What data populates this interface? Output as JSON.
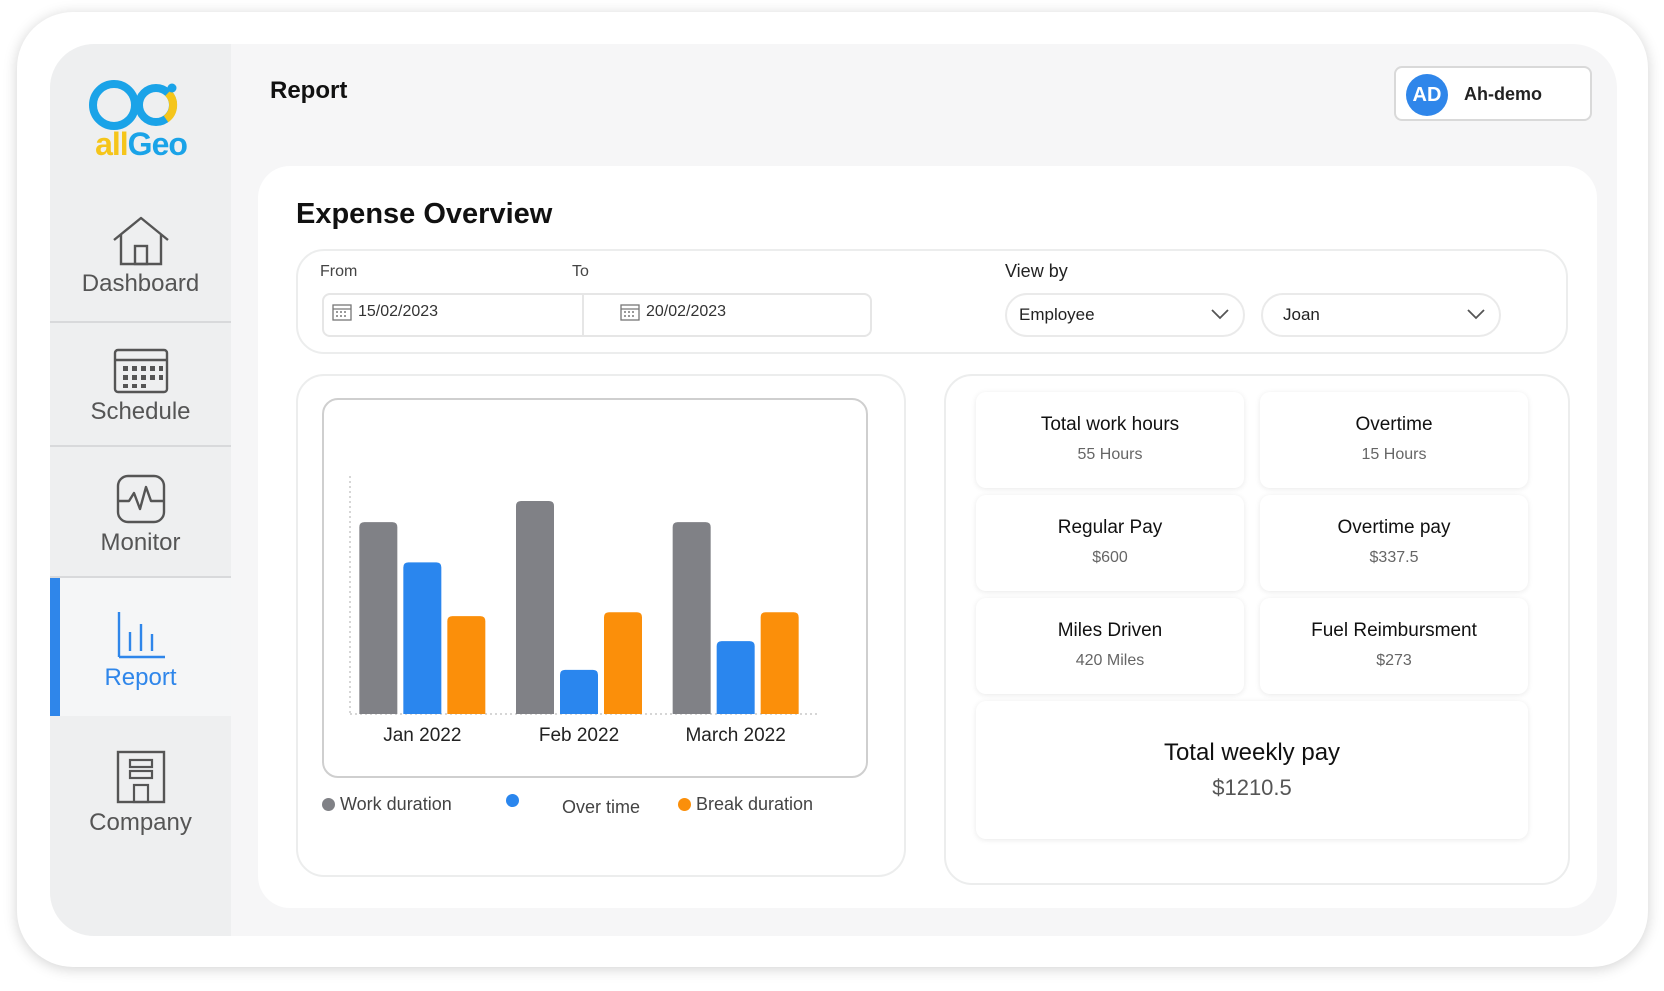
{
  "app": {
    "logo_text": "allGeo"
  },
  "sidebar": {
    "items": [
      {
        "label": "Dashboard",
        "icon": "house-icon"
      },
      {
        "label": "Schedule",
        "icon": "calendar-icon"
      },
      {
        "label": "Monitor",
        "icon": "pulse-monitor-icon"
      },
      {
        "label": "Report",
        "icon": "bar-chart-icon",
        "active": true
      },
      {
        "label": "Company",
        "icon": "building-icon"
      }
    ]
  },
  "header": {
    "title": "Report",
    "user": {
      "initials": "AD",
      "name": "Ah-demo"
    }
  },
  "overview": {
    "title": "Expense Overview",
    "filters": {
      "from_label": "From",
      "to_label": "To",
      "from_value": "15/02/2023",
      "to_value": "20/02/2023",
      "view_by_label": "View by",
      "view_by_value": "Employee",
      "employee_value": "Joan"
    }
  },
  "chart_data": {
    "type": "bar",
    "categories": [
      "Jan 2022",
      "Feb 2022",
      "March 2022"
    ],
    "series": [
      {
        "name": "Work duration",
        "color": "#808186",
        "values": [
          100,
          111,
          100
        ]
      },
      {
        "name": "",
        "color": "#2a86ee",
        "values": [
          79,
          23,
          38
        ]
      },
      {
        "name": "Break duration",
        "color": "#fb8f0a",
        "values": [
          51,
          53,
          53
        ]
      }
    ],
    "legend_labels": [
      "Work duration",
      "Over time",
      "Break duration"
    ],
    "ylim": [
      0,
      123
    ],
    "grid": false
  },
  "stats": {
    "tiles": [
      {
        "label": "Total work hours",
        "value": "55 Hours"
      },
      {
        "label": "Overtime",
        "value": "15 Hours"
      },
      {
        "label": "Regular Pay",
        "value": "$600"
      },
      {
        "label": "Overtime pay",
        "value": "$337.5"
      },
      {
        "label": "Miles Driven",
        "value": "420 Miles"
      },
      {
        "label": "Fuel Reimbursment",
        "value": "$273"
      }
    ],
    "total": {
      "label": "Total weekly pay",
      "value": "$1210.5"
    }
  },
  "colors": {
    "accent": "#2f86ea",
    "logo_blue": "#1aa3e8",
    "logo_yellow": "#f5c51b"
  }
}
